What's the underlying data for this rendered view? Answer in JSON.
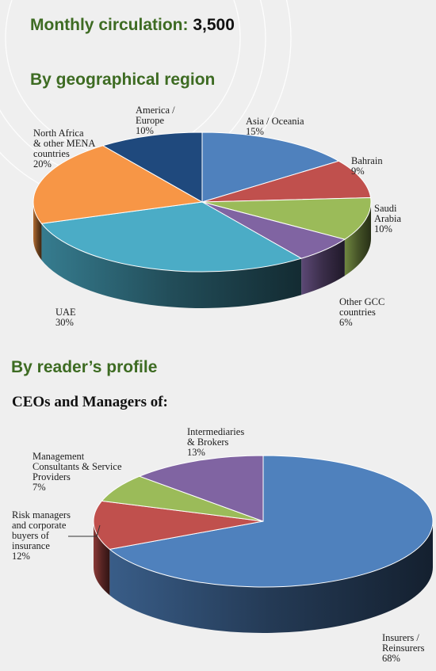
{
  "header": {
    "circulation_label": "Monthly circulation:",
    "circulation_value": "3,500",
    "geo_heading": "By geographical region",
    "profile_heading": "By reader’s profile",
    "profile_subheading": "CEOs and Managers of:"
  },
  "chart_data": [
    {
      "type": "pie",
      "title": "By geographical region",
      "slices": [
        {
          "label": [
            "Asia / Oceania",
            "15%"
          ],
          "value": 15,
          "color": "#4f81bd"
        },
        {
          "label": [
            "Bahrain",
            "9%"
          ],
          "value": 9,
          "color": "#c0504d"
        },
        {
          "label": [
            "Saudi",
            "Arabia",
            "10%"
          ],
          "value": 10,
          "color": "#9bbb59"
        },
        {
          "label": [
            "Other GCC",
            "countries",
            "6%"
          ],
          "value": 6,
          "color": "#8064a2"
        },
        {
          "label": [
            "UAE",
            "30%"
          ],
          "value": 30,
          "color": "#4bacc6"
        },
        {
          "label": [
            "North Africa",
            "& other MENA",
            "countries",
            "20%"
          ],
          "value": 20,
          "color": "#f79646"
        },
        {
          "label": [
            "America /",
            "Europe",
            "10%"
          ],
          "value": 10,
          "color": "#1f497d"
        }
      ]
    },
    {
      "type": "pie",
      "title": "By reader’s profile",
      "slices": [
        {
          "label": [
            "Insurers /",
            "Reinsurers",
            "68%"
          ],
          "value": 68,
          "color": "#4f81bd"
        },
        {
          "label": [
            "Risk managers",
            "and corporate",
            "buyers of",
            "insurance",
            "12%"
          ],
          "value": 12,
          "color": "#c0504d"
        },
        {
          "label": [
            "Management",
            "Consultants & Service",
            "Providers",
            "7%"
          ],
          "value": 7,
          "color": "#9bbb59"
        },
        {
          "label": [
            "Intermediaries",
            "& Brokers",
            "13%"
          ],
          "value": 13,
          "color": "#8064a2"
        }
      ]
    }
  ]
}
